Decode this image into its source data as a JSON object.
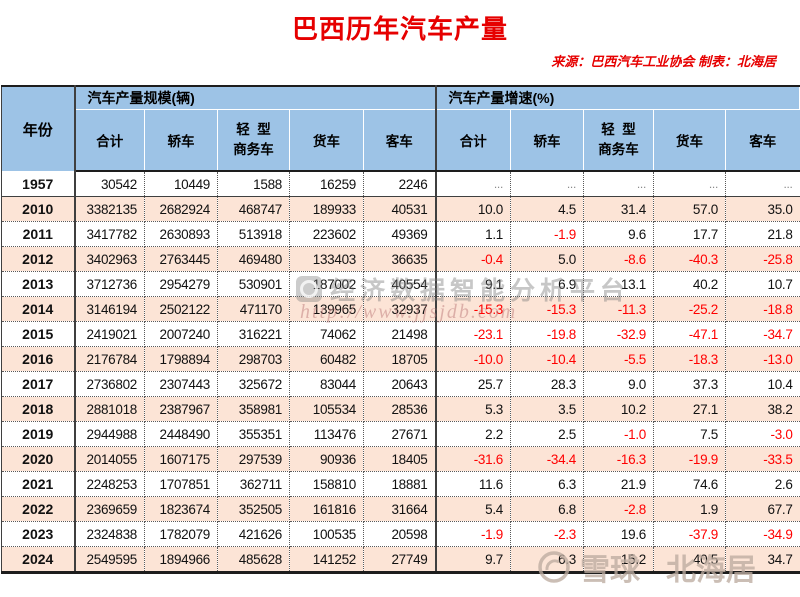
{
  "title": "巴西历年汽车产量",
  "source": "来源：巴西汽车工业协会 制表：北海居",
  "colors": {
    "accent_red": "#e60000",
    "header_blue": "#9dc3e6",
    "row_peach": "#fce4d6",
    "negative_red": "#ff0000"
  },
  "watermarks": {
    "center_text": "经济数据智能分析平台",
    "center_url": "http://www.jjsjdb.com",
    "xueqiu_brand": "雪球",
    "xueqiu_user": "北海居"
  },
  "chart_data": {
    "type": "table",
    "title": "巴西历年汽车产量",
    "year_header": "年份",
    "group1_label": "汽车产量规模(辆)",
    "group2_label": "汽车产量增速(%)",
    "sub_columns": [
      "合计",
      "轿车",
      "轻  型\n商务车",
      "货车",
      "客车"
    ],
    "rows": [
      {
        "year": "1957",
        "scale": [
          "30542",
          "10449",
          "1588",
          "16259",
          "2246"
        ],
        "growth": [
          "...",
          "...",
          "...",
          "...",
          "..."
        ]
      },
      {
        "year": "2010",
        "scale": [
          "3382135",
          "2682924",
          "468747",
          "189933",
          "40531"
        ],
        "growth": [
          "10.0",
          "4.5",
          "31.4",
          "57.0",
          "35.0"
        ]
      },
      {
        "year": "2011",
        "scale": [
          "3417782",
          "2630893",
          "513918",
          "223602",
          "49369"
        ],
        "growth": [
          "1.1",
          "-1.9",
          "9.6",
          "17.7",
          "21.8"
        ]
      },
      {
        "year": "2012",
        "scale": [
          "3402963",
          "2763445",
          "469480",
          "133403",
          "36635"
        ],
        "growth": [
          "-0.4",
          "5.0",
          "-8.6",
          "-40.3",
          "-25.8"
        ]
      },
      {
        "year": "2013",
        "scale": [
          "3712736",
          "2954279",
          "530901",
          "187002",
          "40554"
        ],
        "growth": [
          "9.1",
          "6.9",
          "13.1",
          "40.2",
          "10.7"
        ]
      },
      {
        "year": "2014",
        "scale": [
          "3146194",
          "2502122",
          "471170",
          "139965",
          "32937"
        ],
        "growth": [
          "-15.3",
          "-15.3",
          "-11.3",
          "-25.2",
          "-18.8"
        ]
      },
      {
        "year": "2015",
        "scale": [
          "2419021",
          "2007240",
          "316221",
          "74062",
          "21498"
        ],
        "growth": [
          "-23.1",
          "-19.8",
          "-32.9",
          "-47.1",
          "-34.7"
        ]
      },
      {
        "year": "2016",
        "scale": [
          "2176784",
          "1798894",
          "298703",
          "60482",
          "18705"
        ],
        "growth": [
          "-10.0",
          "-10.4",
          "-5.5",
          "-18.3",
          "-13.0"
        ]
      },
      {
        "year": "2017",
        "scale": [
          "2736802",
          "2307443",
          "325672",
          "83044",
          "20643"
        ],
        "growth": [
          "25.7",
          "28.3",
          "9.0",
          "37.3",
          "10.4"
        ]
      },
      {
        "year": "2018",
        "scale": [
          "2881018",
          "2387967",
          "358981",
          "105534",
          "28536"
        ],
        "growth": [
          "5.3",
          "3.5",
          "10.2",
          "27.1",
          "38.2"
        ]
      },
      {
        "year": "2019",
        "scale": [
          "2944988",
          "2448490",
          "355351",
          "113476",
          "27671"
        ],
        "growth": [
          "2.2",
          "2.5",
          "-1.0",
          "7.5",
          "-3.0"
        ]
      },
      {
        "year": "2020",
        "scale": [
          "2014055",
          "1607175",
          "297539",
          "90936",
          "18405"
        ],
        "growth": [
          "-31.6",
          "-34.4",
          "-16.3",
          "-19.9",
          "-33.5"
        ]
      },
      {
        "year": "2021",
        "scale": [
          "2248253",
          "1707851",
          "362711",
          "158810",
          "18881"
        ],
        "growth": [
          "11.6",
          "6.3",
          "21.9",
          "74.6",
          "2.6"
        ]
      },
      {
        "year": "2022",
        "scale": [
          "2369659",
          "1823674",
          "352505",
          "161816",
          "31664"
        ],
        "growth": [
          "5.4",
          "6.8",
          "-2.8",
          "1.9",
          "67.7"
        ]
      },
      {
        "year": "2023",
        "scale": [
          "2324838",
          "1782079",
          "421626",
          "100535",
          "20598"
        ],
        "growth": [
          "-1.9",
          "-2.3",
          "19.6",
          "-37.9",
          "-34.9"
        ]
      },
      {
        "year": "2024",
        "scale": [
          "2549595",
          "1894966",
          "485628",
          "141252",
          "27749"
        ],
        "growth": [
          "9.7",
          "6.3",
          "15.2",
          "40.5",
          "34.7"
        ]
      }
    ]
  }
}
